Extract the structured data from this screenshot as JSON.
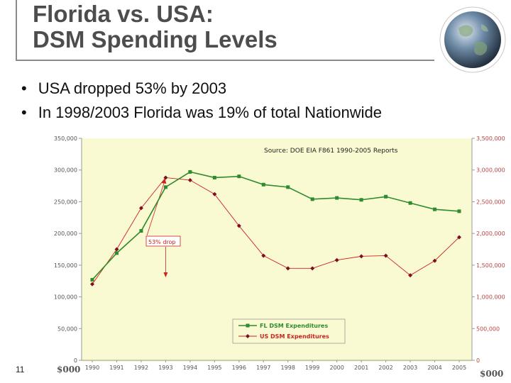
{
  "slide": {
    "title_line1": "Florida vs. USA:",
    "title_line2": "DSM Spending Levels",
    "bullets": [
      "USA dropped 53% by 2003",
      "In 1998/2003 Florida was 19% of  total Nationwide"
    ],
    "page_number": "11",
    "globe_icon": "earth-globe-icon"
  },
  "chart_data": {
    "type": "line",
    "source_note": "Source: DOE EIA F861 1990-2005 Reports",
    "x": [
      "1990",
      "1991",
      "1992",
      "1993",
      "1994",
      "1995",
      "1996",
      "1997",
      "1998",
      "1999",
      "2000",
      "2001",
      "2002",
      "2003",
      "2004",
      "2005"
    ],
    "left_axis": {
      "ylim": [
        0,
        350000
      ],
      "ticks": [
        "0",
        "50,000",
        "100,000",
        "150,000",
        "200,000",
        "250,000",
        "300,000",
        "350,000"
      ],
      "currency_label": "$000"
    },
    "right_axis": {
      "ylim": [
        0,
        3500000
      ],
      "ticks": [
        "0",
        "500,000",
        "1,000,000",
        "1,500,000",
        "2,000,000",
        "2,500,000",
        "3,000,000",
        "3,500,000"
      ],
      "currency_label": "$000"
    },
    "series": [
      {
        "name": "FL DSM Expenditures",
        "axis": "left",
        "color": "#2e8b2e",
        "marker": "square",
        "values": [
          127000,
          169000,
          204000,
          273000,
          297000,
          288000,
          290000,
          277000,
          273000,
          254000,
          256000,
          253000,
          258000,
          248000,
          238000,
          235000
        ]
      },
      {
        "name": "US DSM Expenditures",
        "axis": "right",
        "color": "#cc2222",
        "marker": "diamond",
        "values": [
          1200000,
          1750000,
          2400000,
          2880000,
          2840000,
          2620000,
          2120000,
          1650000,
          1450000,
          1450000,
          1580000,
          1640000,
          1650000,
          1340000,
          1570000,
          1940000
        ]
      }
    ],
    "annotation": {
      "text": "53% drop",
      "from_year": "1993",
      "to_year": "1993"
    },
    "background": "#fafad2",
    "legend_placement": "bottom-right"
  }
}
